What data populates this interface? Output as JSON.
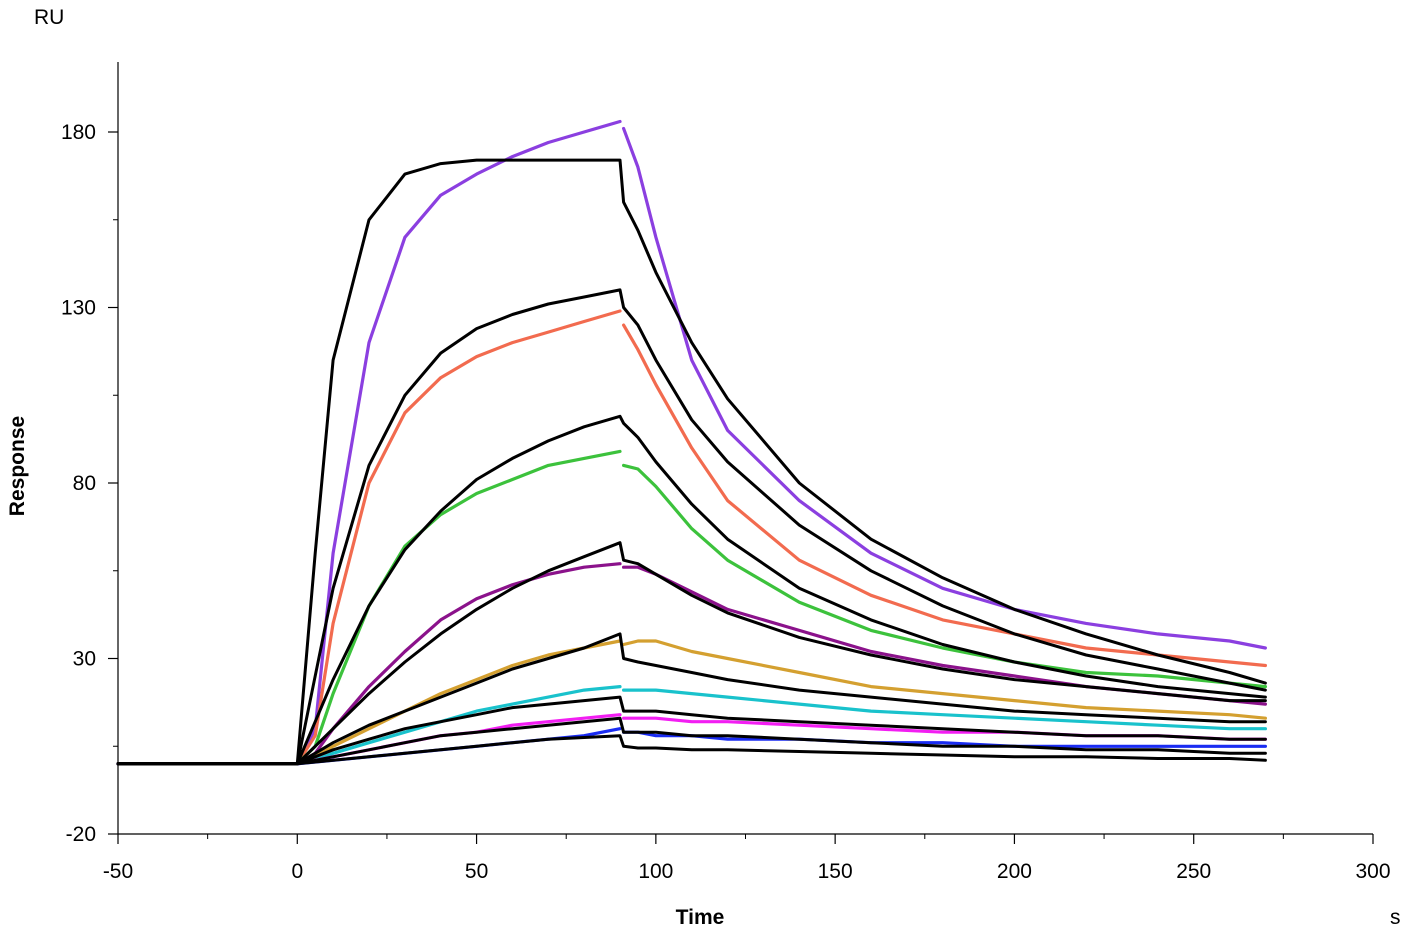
{
  "chart_data": {
    "type": "line",
    "title": "",
    "xlabel": "Time",
    "ylabel": "Response",
    "x_unit": "s",
    "y_unit": "RU",
    "xlim": [
      -50,
      300
    ],
    "ylim": [
      -20,
      200
    ],
    "x_ticks": [
      -50,
      0,
      50,
      100,
      150,
      200,
      250,
      300
    ],
    "x_tick_labels": [
      "-50",
      "0",
      "50",
      "100",
      "150",
      "200",
      "250",
      "300"
    ],
    "y_ticks": [
      -20,
      30,
      80,
      130,
      180
    ],
    "y_tick_labels": [
      "-20",
      "30",
      "80",
      "130",
      "180"
    ],
    "grid": false,
    "legend": "none",
    "association_start": 0,
    "dissociation_start": 90,
    "end_time": 270,
    "series": [
      {
        "color": "#8B3FE0",
        "x": [
          -50,
          0,
          5,
          10,
          20,
          30,
          40,
          50,
          60,
          70,
          80,
          90,
          91,
          95,
          100,
          110,
          120,
          140,
          160,
          180,
          200,
          220,
          240,
          260,
          270
        ],
        "values": [
          0,
          0,
          10,
          60,
          120,
          150,
          162,
          168,
          173,
          177,
          180,
          183,
          181,
          170,
          150,
          115,
          95,
          75,
          60,
          50,
          44,
          40,
          37,
          35,
          33
        ]
      },
      {
        "color": "#F26B4F",
        "x": [
          -50,
          0,
          5,
          10,
          20,
          30,
          40,
          50,
          60,
          70,
          80,
          90,
          91,
          95,
          100,
          110,
          120,
          140,
          160,
          180,
          200,
          220,
          240,
          260,
          270
        ],
        "values": [
          0,
          0,
          8,
          40,
          80,
          100,
          110,
          116,
          120,
          123,
          126,
          129,
          125,
          118,
          108,
          90,
          75,
          58,
          48,
          41,
          37,
          33,
          31,
          29,
          28
        ]
      },
      {
        "color": "#3CC23C",
        "x": [
          -50,
          0,
          5,
          10,
          20,
          30,
          40,
          50,
          60,
          70,
          80,
          90,
          91,
          95,
          100,
          110,
          120,
          140,
          160,
          180,
          200,
          220,
          240,
          260,
          270
        ],
        "values": [
          0,
          0,
          5,
          20,
          45,
          62,
          71,
          77,
          81,
          85,
          87,
          89,
          85,
          84,
          79,
          67,
          58,
          46,
          38,
          33,
          29,
          26,
          25,
          23,
          22
        ]
      },
      {
        "color": "#8B128B",
        "x": [
          -50,
          0,
          5,
          10,
          20,
          30,
          40,
          50,
          60,
          70,
          80,
          90,
          91,
          95,
          100,
          110,
          120,
          140,
          160,
          180,
          200,
          220,
          240,
          260,
          270
        ],
        "values": [
          0,
          0,
          3,
          10,
          22,
          32,
          41,
          47,
          51,
          54,
          56,
          57,
          56,
          56,
          54,
          49,
          44,
          38,
          32,
          28,
          25,
          22,
          20,
          18,
          17
        ]
      },
      {
        "color": "#D4A030",
        "x": [
          -50,
          0,
          5,
          10,
          20,
          30,
          40,
          50,
          60,
          70,
          80,
          90,
          91,
          95,
          100,
          110,
          120,
          140,
          160,
          180,
          200,
          220,
          240,
          260,
          270
        ],
        "values": [
          0,
          0,
          2,
          5,
          10,
          15,
          20,
          24,
          28,
          31,
          33,
          35,
          34,
          35,
          35,
          32,
          30,
          26,
          22,
          20,
          18,
          16,
          15,
          14,
          13
        ]
      },
      {
        "color": "#19C2CC",
        "x": [
          -50,
          0,
          5,
          10,
          20,
          30,
          40,
          50,
          60,
          70,
          80,
          90,
          91,
          95,
          100,
          110,
          120,
          140,
          160,
          180,
          200,
          220,
          240,
          260,
          270
        ],
        "values": [
          0,
          0,
          1,
          3,
          6,
          9,
          12,
          15,
          17,
          19,
          21,
          22,
          21,
          21,
          21,
          20,
          19,
          17,
          15,
          14,
          13,
          12,
          11,
          10,
          10
        ]
      },
      {
        "color": "#F21EF2",
        "x": [
          -50,
          0,
          5,
          10,
          20,
          30,
          40,
          50,
          60,
          70,
          80,
          90,
          91,
          95,
          100,
          110,
          120,
          140,
          160,
          180,
          200,
          220,
          240,
          260,
          270
        ],
        "values": [
          0,
          0,
          1,
          2,
          4,
          6,
          8,
          9,
          11,
          12,
          13,
          14,
          13,
          13,
          13,
          12,
          12,
          11,
          10,
          9,
          9,
          8,
          8,
          7,
          7
        ]
      },
      {
        "color": "#1A2CF2",
        "x": [
          -50,
          0,
          5,
          10,
          20,
          30,
          40,
          50,
          60,
          70,
          80,
          90,
          91,
          95,
          100,
          110,
          120,
          140,
          160,
          180,
          200,
          220,
          240,
          260,
          270
        ],
        "values": [
          0,
          0,
          0.5,
          1,
          2,
          3,
          4,
          5,
          6,
          7,
          8,
          10,
          9,
          9,
          8,
          8,
          7,
          7,
          6,
          6,
          5,
          5,
          5,
          5,
          5
        ]
      },
      {
        "color": "#000000",
        "x": [
          -50,
          0,
          5,
          10,
          20,
          30,
          40,
          50,
          60,
          70,
          80,
          90,
          91,
          95,
          100,
          110,
          120,
          140,
          160,
          180,
          200,
          220,
          240,
          260,
          270
        ],
        "values": [
          0,
          0,
          60,
          115,
          155,
          168,
          171,
          172,
          172,
          172,
          172,
          172,
          160,
          152,
          140,
          120,
          104,
          80,
          64,
          53,
          44,
          37,
          31,
          26,
          23
        ]
      },
      {
        "color": "#000000",
        "x": [
          -50,
          0,
          5,
          10,
          20,
          30,
          40,
          50,
          60,
          70,
          80,
          90,
          91,
          95,
          100,
          110,
          120,
          140,
          160,
          180,
          200,
          220,
          240,
          260,
          270
        ],
        "values": [
          0,
          0,
          25,
          50,
          85,
          105,
          117,
          124,
          128,
          131,
          133,
          135,
          130,
          125,
          115,
          98,
          86,
          68,
          55,
          45,
          37,
          31,
          27,
          23,
          21
        ]
      },
      {
        "color": "#000000",
        "x": [
          -50,
          0,
          5,
          10,
          20,
          30,
          40,
          50,
          60,
          70,
          80,
          90,
          91,
          95,
          100,
          110,
          120,
          140,
          160,
          180,
          200,
          220,
          240,
          260,
          270
        ],
        "values": [
          0,
          0,
          12,
          24,
          45,
          61,
          72,
          81,
          87,
          92,
          96,
          99,
          97,
          93,
          86,
          74,
          64,
          50,
          41,
          34,
          29,
          25,
          22,
          20,
          19
        ]
      },
      {
        "color": "#000000",
        "x": [
          -50,
          0,
          5,
          10,
          20,
          30,
          40,
          50,
          60,
          70,
          80,
          90,
          91,
          95,
          100,
          110,
          120,
          140,
          160,
          180,
          200,
          220,
          240,
          260,
          270
        ],
        "values": [
          0,
          0,
          5,
          10,
          20,
          29,
          37,
          44,
          50,
          55,
          59,
          63,
          58,
          57,
          54,
          48,
          43,
          36,
          31,
          27,
          24,
          22,
          20,
          18,
          18
        ]
      },
      {
        "color": "#000000",
        "x": [
          -50,
          0,
          5,
          10,
          20,
          30,
          40,
          50,
          60,
          70,
          80,
          90,
          91,
          95,
          100,
          110,
          120,
          140,
          160,
          180,
          200,
          220,
          240,
          260,
          270
        ],
        "values": [
          0,
          0,
          3,
          6,
          11,
          15,
          19,
          23,
          27,
          30,
          33,
          37,
          30,
          29,
          28,
          26,
          24,
          21,
          19,
          17,
          15,
          14,
          13,
          12,
          12
        ]
      },
      {
        "color": "#000000",
        "x": [
          -50,
          0,
          5,
          10,
          20,
          30,
          40,
          50,
          60,
          70,
          80,
          90,
          91,
          95,
          100,
          110,
          120,
          140,
          160,
          180,
          200,
          220,
          240,
          260,
          270
        ],
        "values": [
          0,
          0,
          2,
          4,
          7,
          10,
          12,
          14,
          16,
          17,
          18,
          19,
          15,
          15,
          15,
          14,
          13,
          12,
          11,
          10,
          9,
          8,
          8,
          7,
          7
        ]
      },
      {
        "color": "#000000",
        "x": [
          -50,
          0,
          5,
          10,
          20,
          30,
          40,
          50,
          60,
          70,
          80,
          90,
          91,
          95,
          100,
          110,
          120,
          140,
          160,
          180,
          200,
          220,
          240,
          260,
          270
        ],
        "values": [
          0,
          0,
          1,
          2,
          4,
          6,
          8,
          9,
          10,
          11,
          12,
          13,
          9,
          9,
          9,
          8,
          8,
          7,
          6,
          5,
          5,
          4,
          4,
          3,
          3
        ]
      },
      {
        "color": "#000000",
        "x": [
          -50,
          0,
          5,
          10,
          20,
          30,
          40,
          50,
          60,
          70,
          80,
          90,
          91,
          95,
          100,
          110,
          120,
          140,
          160,
          180,
          200,
          220,
          240,
          260,
          270
        ],
        "values": [
          0,
          0,
          0.5,
          1,
          2,
          3,
          4,
          5,
          6,
          7,
          7.5,
          8,
          5,
          4.5,
          4.5,
          4,
          4,
          3.5,
          3,
          2.5,
          2,
          2,
          1.5,
          1.5,
          1
        ]
      }
    ]
  }
}
